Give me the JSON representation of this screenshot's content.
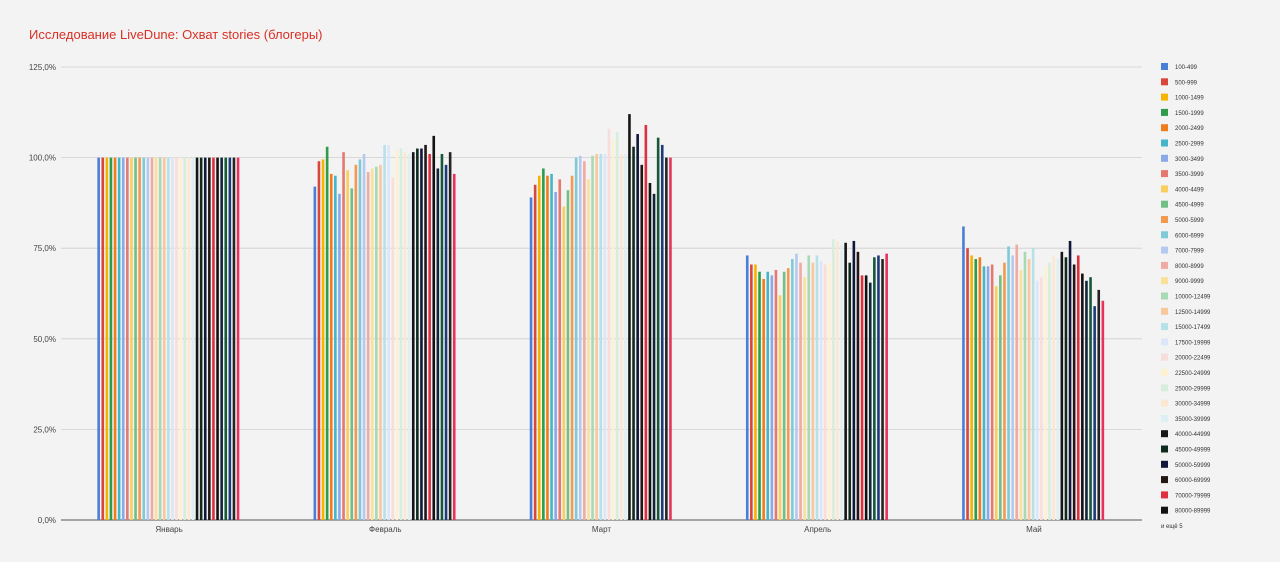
{
  "chart_data": {
    "type": "bar",
    "title": "Исследование LiveDune: Охват stories (блогеры)",
    "xlabel": "",
    "ylabel": "",
    "ylim": [
      0,
      125
    ],
    "yticks": [
      "0,0%",
      "25,0%",
      "50,0%",
      "75,0%",
      "100,0%",
      "125,0%"
    ],
    "grid": true,
    "legend_position": "right",
    "legend_more": "и ещё 5",
    "categories": [
      "Январь",
      "Февраль",
      "Март",
      "Апрель",
      "Май"
    ],
    "series": [
      {
        "name": "100-499",
        "color": "#4a7fd8",
        "values": [
          100,
          92,
          89,
          73,
          81
        ]
      },
      {
        "name": "500-999",
        "color": "#d9463b",
        "values": [
          100,
          99,
          92.5,
          70.5,
          75
        ]
      },
      {
        "name": "1000-1499",
        "color": "#f5b400",
        "values": [
          100,
          99.5,
          95,
          70.5,
          73
        ]
      },
      {
        "name": "1500-1999",
        "color": "#2e9c4b",
        "values": [
          100,
          103,
          97,
          68.5,
          72
        ]
      },
      {
        "name": "2000-2499",
        "color": "#f07c1b",
        "values": [
          100,
          95.5,
          95,
          66.5,
          72.5
        ]
      },
      {
        "name": "2500-2999",
        "color": "#45b6c8",
        "values": [
          100,
          95,
          95.5,
          68.5,
          70
        ]
      },
      {
        "name": "3000-3499",
        "color": "#8aa9e6",
        "values": [
          100,
          90,
          90.5,
          67.5,
          70
        ]
      },
      {
        "name": "3500-3999",
        "color": "#e5786f",
        "values": [
          100,
          101.5,
          94,
          69,
          70.5
        ]
      },
      {
        "name": "4000-4499",
        "color": "#f8cf5c",
        "values": [
          100,
          96.5,
          86.5,
          62,
          64.5
        ]
      },
      {
        "name": "4500-4999",
        "color": "#6fbf86",
        "values": [
          100,
          91.5,
          91,
          68.5,
          67.5
        ]
      },
      {
        "name": "5000-5999",
        "color": "#f39a51",
        "values": [
          100,
          98,
          95,
          69.5,
          71
        ]
      },
      {
        "name": "6000-6999",
        "color": "#7ecad6",
        "values": [
          100,
          99.5,
          100,
          72,
          75.5
        ]
      },
      {
        "name": "7000-7999",
        "color": "#b4c9ef",
        "values": [
          100,
          101,
          100.5,
          73.5,
          73
        ]
      },
      {
        "name": "8000-8999",
        "color": "#efaaa4",
        "values": [
          100,
          96,
          99,
          71,
          76
        ]
      },
      {
        "name": "9000-9999",
        "color": "#fbe09a",
        "values": [
          100,
          97,
          94,
          67,
          69
        ]
      },
      {
        "name": "10000-12499",
        "color": "#a8d9b5",
        "values": [
          100,
          97.5,
          100.5,
          73,
          74
        ]
      },
      {
        "name": "12500-14999",
        "color": "#f8c79e",
        "values": [
          100,
          98,
          101,
          71,
          72
        ]
      },
      {
        "name": "15000-17499",
        "color": "#b7e1e8",
        "values": [
          100,
          103.5,
          101,
          73,
          75
        ]
      },
      {
        "name": "17500-19999",
        "color": "#dde6f8",
        "values": [
          100,
          103.5,
          101,
          71.5,
          66
        ]
      },
      {
        "name": "20000-22499",
        "color": "#f8dedb",
        "values": [
          100,
          94.5,
          108,
          70.5,
          67
        ]
      },
      {
        "name": "22500-24999",
        "color": "#fdf1cf",
        "values": [
          100,
          102,
          105,
          71,
          70
        ]
      },
      {
        "name": "25000-29999",
        "color": "#d7eedd",
        "values": [
          100,
          102.5,
          107,
          77.5,
          71
        ]
      },
      {
        "name": "30000-34999",
        "color": "#fce7d3",
        "values": [
          100,
          101.5,
          101,
          77,
          73
        ]
      },
      {
        "name": "35000-39999",
        "color": "#dcf0f3",
        "values": [
          100,
          101,
          101,
          76,
          72
        ]
      },
      {
        "name": "40000-44999",
        "color": "#161616",
        "values": [
          100,
          101.5,
          112,
          76.5,
          74
        ]
      },
      {
        "name": "45000-49999",
        "color": "#0f2b1e",
        "values": [
          100,
          102.5,
          103,
          71,
          72.5
        ]
      },
      {
        "name": "50000-59999",
        "color": "#10173a",
        "values": [
          100,
          102.5,
          106.5,
          77,
          77
        ]
      },
      {
        "name": "60000-69999",
        "color": "#241615",
        "values": [
          100,
          103.5,
          98,
          74,
          70.5
        ]
      },
      {
        "name": "70000-79999",
        "color": "#e02f3f",
        "values": [
          100,
          101,
          109,
          67.5,
          73
        ]
      },
      {
        "name": "80000-89999",
        "color": "#121212",
        "values": [
          100,
          106,
          93,
          67.5,
          68
        ]
      },
      {
        "name": "",
        "color": "#12263a",
        "values": [
          100,
          97,
          90,
          65.5,
          66
        ]
      },
      {
        "name": "",
        "color": "#17583b",
        "values": [
          100,
          101,
          105.5,
          72.5,
          67
        ]
      },
      {
        "name": "",
        "color": "#1d3a7a",
        "values": [
          100,
          98,
          103.5,
          73,
          59
        ]
      },
      {
        "name": "",
        "color": "#242424",
        "values": [
          100,
          101.5,
          100,
          72,
          63.5
        ]
      },
      {
        "name": "",
        "color": "#e8315c",
        "values": [
          100,
          95.5,
          100,
          73.5,
          60.5
        ]
      }
    ]
  }
}
